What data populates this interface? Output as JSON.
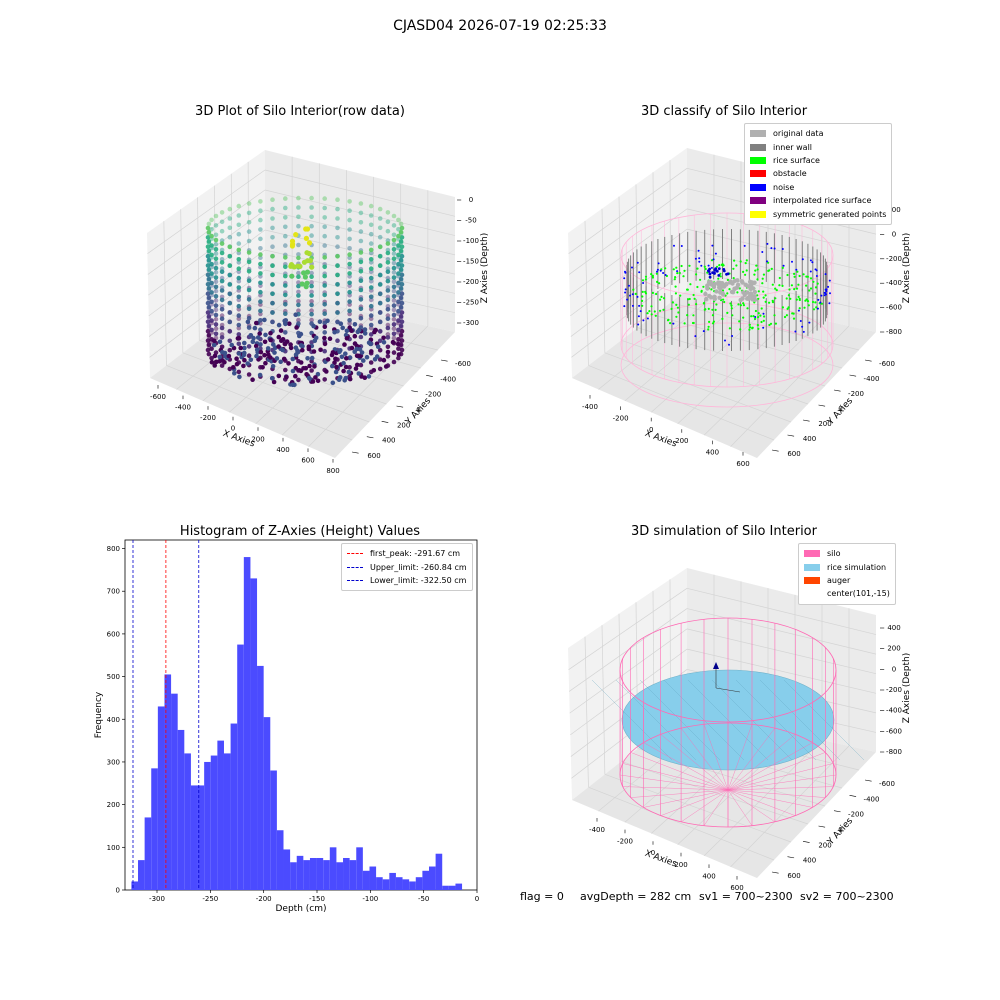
{
  "suptitle": "CJASD04 2026-07-19 02:25:33",
  "chart_data": [
    {
      "type": "scatter",
      "title": "3D Plot of Silo Interior(row data)",
      "xlabel": "X Axies",
      "ylabel": "Y Axies",
      "zlabel": "Z Axies (Depth)",
      "x_ticks": [
        "-600",
        "-400",
        "-200",
        "0",
        "200",
        "400",
        "600",
        "800"
      ],
      "y_ticks": [
        "-600",
        "-400",
        "-200",
        "0",
        "200",
        "400",
        "600"
      ],
      "z_ticks": [
        "0",
        "-50",
        "-100",
        "-150",
        "-200",
        "-250",
        "-300"
      ],
      "colormap": "viridis"
    },
    {
      "type": "scatter",
      "title": "3D classify of Silo Interior",
      "xlabel": "X Axies",
      "ylabel": "Y Axies",
      "zlabel": "Z Axies (Depth)",
      "x_ticks": [
        "-400",
        "-200",
        "0",
        "200",
        "400",
        "600"
      ],
      "y_ticks": [
        "-600",
        "-400",
        "-200",
        "0",
        "200",
        "400",
        "600"
      ],
      "z_ticks": [
        "200",
        "0",
        "-200",
        "-400",
        "-600",
        "-800"
      ],
      "legend": [
        {
          "label": "original data",
          "color": "#b0b0b0"
        },
        {
          "label": "inner wall",
          "color": "#808080"
        },
        {
          "label": "rice surface",
          "color": "#00ff00"
        },
        {
          "label": "obstacle",
          "color": "#ff0000"
        },
        {
          "label": "noise",
          "color": "#0000ff"
        },
        {
          "label": "interpolated rice surface",
          "color": "#800080"
        },
        {
          "label": "symmetric generated points",
          "color": "#ffff00"
        }
      ]
    },
    {
      "type": "bar",
      "title": "Histogram of Z-Axies (Height) Values",
      "xlabel": "Depth (cm)",
      "ylabel": "Frequency",
      "xlim": [
        -330,
        0
      ],
      "ylim": [
        0,
        820
      ],
      "x_ticks": [
        -300,
        -250,
        -200,
        -150,
        -100,
        -50,
        0
      ],
      "y_ticks": [
        0,
        100,
        200,
        300,
        400,
        500,
        600,
        700,
        800
      ],
      "bar_color": "#4b4bff",
      "bin_start": -324,
      "bin_width": 6.2,
      "values": [
        20,
        70,
        170,
        285,
        430,
        505,
        460,
        375,
        320,
        245,
        245,
        300,
        315,
        350,
        320,
        390,
        575,
        780,
        730,
        525,
        405,
        280,
        140,
        95,
        65,
        80,
        70,
        75,
        75,
        70,
        100,
        65,
        75,
        70,
        100,
        45,
        55,
        30,
        25,
        40,
        30,
        25,
        20,
        30,
        45,
        55,
        85,
        10,
        10,
        15
      ],
      "reference_lines": [
        {
          "name": "first_peak",
          "label": "first_peak: -291.67 cm",
          "value": -291.67,
          "color": "#ff0000"
        },
        {
          "name": "Upper_limit",
          "label": "Upper_limit: -260.84 cm",
          "value": -260.84,
          "color": "#0000cd"
        },
        {
          "name": "Lower_limit",
          "label": "Lower_limit: -322.50 cm",
          "value": -322.5,
          "color": "#0000cd"
        }
      ],
      "legend_position": "top-right"
    },
    {
      "type": "scatter",
      "title": "3D simulation of Silo Interior",
      "xlabel": "X Axies",
      "ylabel": "Y Axies",
      "zlabel": "Z Axies (Depth)",
      "x_ticks": [
        "-400",
        "-200",
        "0",
        "200",
        "400",
        "600"
      ],
      "y_ticks": [
        "-600",
        "-400",
        "-200",
        "0",
        "200",
        "400",
        "600"
      ],
      "z_ticks": [
        "400",
        "200",
        "0",
        "-200",
        "-400",
        "-600",
        "-800"
      ],
      "legend": [
        {
          "label": "silo",
          "color": "#ff69b4"
        },
        {
          "label": "rice simulation",
          "color": "#87ceeb"
        },
        {
          "label": "auger",
          "color": "#ff4500"
        },
        {
          "label": "center(101,-15)",
          "color": ""
        }
      ]
    }
  ],
  "footer": {
    "flag": "flag = 0",
    "avg_depth": "avgDepth = 282 cm",
    "sv1": "sv1 = 700~2300",
    "sv2": "sv2 = 700~2300"
  }
}
